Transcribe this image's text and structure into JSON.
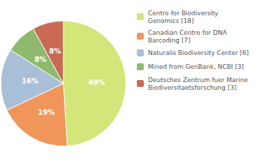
{
  "chart_data": {
    "type": "pie",
    "categories": [
      "Centre for Biodiversity\nGenomics [18]",
      "Canadian Centre for DNA\nBarcoding [7]",
      "Naturalis Biodiversity Center [6]",
      "Mined from GenBank, NCBI [3]",
      "Deutsches Zentrum fuer Marine\nBiodiversitaetsforschung [3]"
    ],
    "values": [
      49,
      19,
      16,
      8,
      8
    ],
    "value_labels": [
      "49%",
      "19%",
      "16%",
      "8%",
      "8%"
    ],
    "colors": [
      "#d4e57a",
      "#f0965a",
      "#a8bfd8",
      "#8fba6e",
      "#c96a55"
    ],
    "data_labels": true,
    "legend": "right"
  }
}
